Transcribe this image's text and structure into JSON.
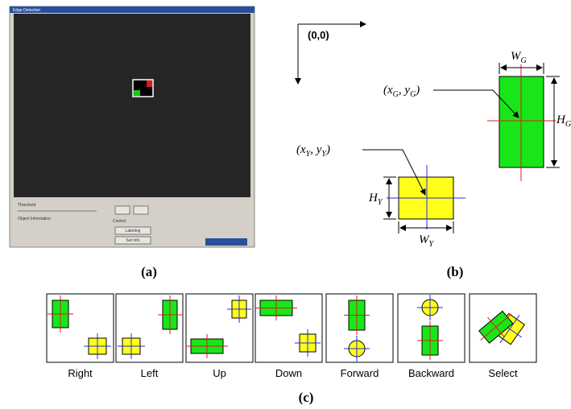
{
  "screenshot": {
    "title": "Edge Detection",
    "threshold_label": "Threshold",
    "object_info_label": "Object Information",
    "control_label": "Control",
    "buttons": [
      "Labeling",
      "Set Info"
    ]
  },
  "diagram": {
    "origin": "(0,0)",
    "green_width": [
      "W",
      "G"
    ],
    "green_height": [
      "H",
      "G"
    ],
    "green_position": [
      "(x",
      "G",
      ", y",
      "G",
      ")"
    ],
    "yellow_position": [
      "(x",
      "Y",
      ", y",
      "Y",
      ")"
    ],
    "yellow_height": [
      "H",
      "Y"
    ],
    "yellow_width": [
      "W",
      "Y"
    ]
  },
  "captions": {
    "a": "(a)",
    "b": "(b)",
    "c": "(c)"
  },
  "gestures": [
    "Right",
    "Left",
    "Up",
    "Down",
    "Forward",
    "Backward",
    "Select"
  ]
}
